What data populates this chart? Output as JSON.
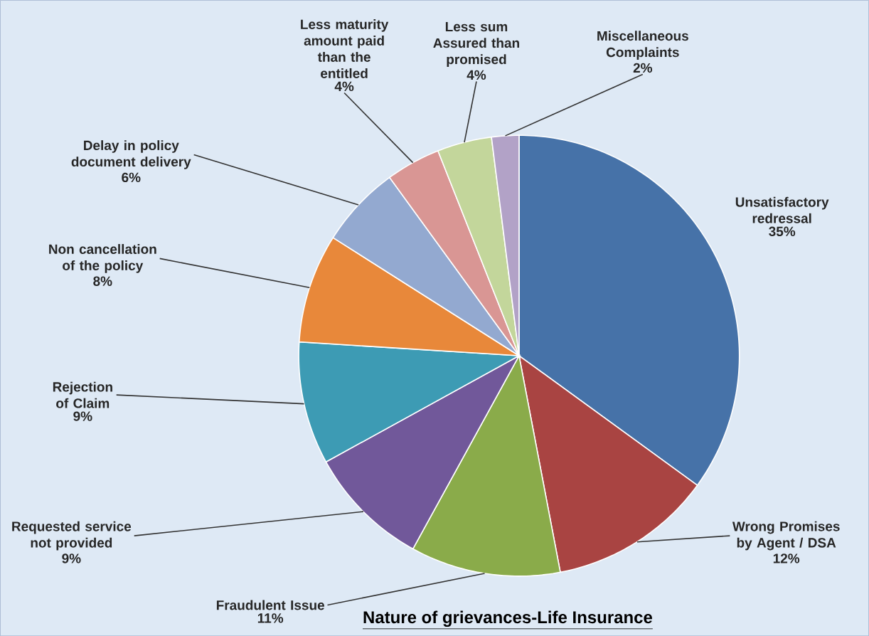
{
  "chart_data": {
    "type": "pie",
    "title": "Nature of grievances-Life Insurance",
    "categories": [
      "Unsatisfactory redressal",
      "Wrong Promises by Agent / DSA",
      "Fraudulent Issue",
      "Requested service not provided",
      "Rejection of Claim",
      "Non cancellation of the policy",
      "Delay in policy document delivery",
      "Less maturity amount paid than the entitled",
      "Less sum Assured than promised",
      "Miscellaneous Complaints"
    ],
    "values": [
      35,
      12,
      11,
      9,
      9,
      8,
      6,
      4,
      4,
      2
    ],
    "value_labels": [
      "35%",
      "12%",
      "11%",
      "9%",
      "9%",
      "8%",
      "6%",
      "4%",
      "4%",
      "2%"
    ],
    "colors": [
      "#4672a8",
      "#a94442",
      "#8aab4a",
      "#71589a",
      "#3d9bb4",
      "#e8883a",
      "#93a9d0",
      "#d99694",
      "#c3d69b",
      "#b2a2c7"
    ]
  }
}
